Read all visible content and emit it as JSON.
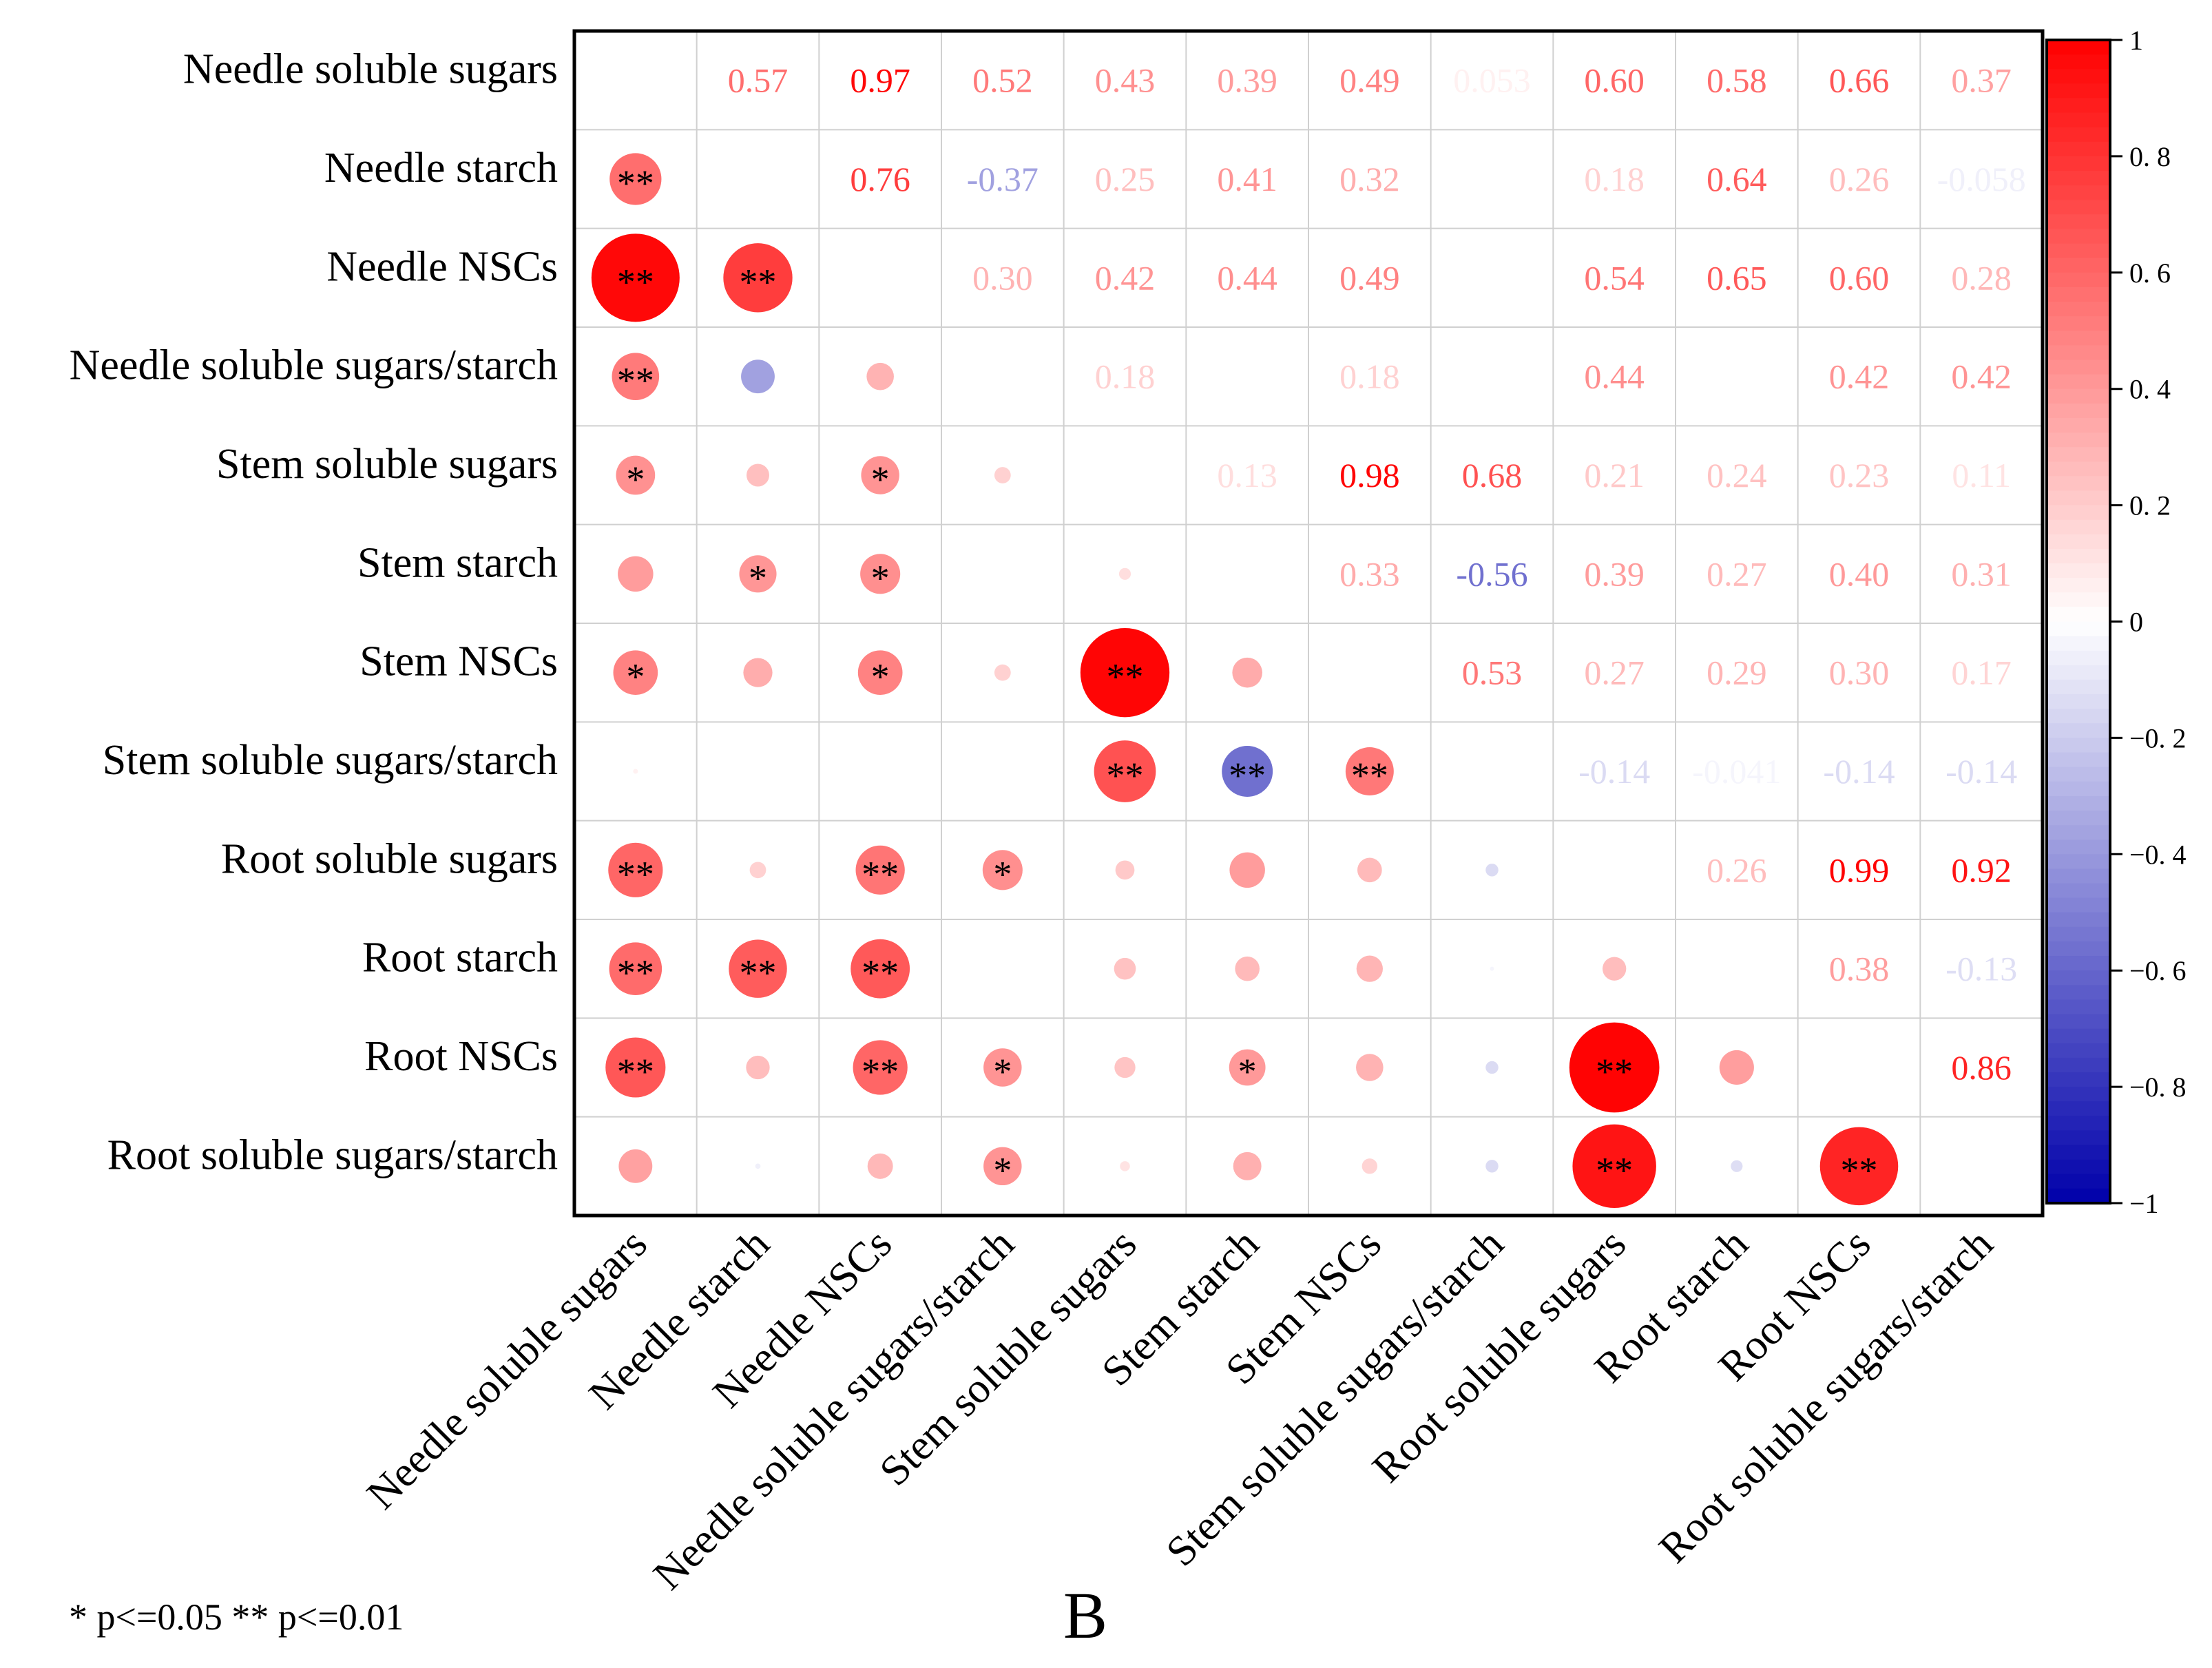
{
  "chart_data": {
    "type": "heatmap",
    "subtype": "correlation-matrix (lower: circles, upper: coefficients)",
    "variables": [
      "Needle soluble sugars",
      "Needle starch",
      "Needle NSCs",
      "Needle soluble sugars/starch",
      "Stem soluble sugars",
      "Stem starch",
      "Stem NSCs",
      "Stem soluble sugars/starch",
      "Root soluble sugars",
      "Root starch",
      "Root NSCs",
      "Root soluble sugars/starch"
    ],
    "upper": [
      [
        null,
        0.57,
        0.97,
        0.52,
        0.43,
        0.39,
        0.49,
        0.053,
        0.6,
        0.58,
        0.66,
        0.37
      ],
      [
        null,
        null,
        0.76,
        -0.37,
        0.25,
        0.41,
        0.32,
        null,
        0.18,
        0.64,
        0.26,
        -0.058
      ],
      [
        null,
        null,
        null,
        0.3,
        0.42,
        0.44,
        0.49,
        null,
        0.54,
        0.65,
        0.6,
        0.28
      ],
      [
        null,
        null,
        null,
        null,
        0.18,
        null,
        0.18,
        null,
        0.44,
        null,
        0.42,
        0.42
      ],
      [
        null,
        null,
        null,
        null,
        null,
        0.13,
        0.98,
        0.68,
        0.21,
        0.24,
        0.23,
        0.11
      ],
      [
        null,
        null,
        null,
        null,
        null,
        null,
        0.33,
        -0.56,
        0.39,
        0.27,
        0.4,
        0.31
      ],
      [
        null,
        null,
        null,
        null,
        null,
        null,
        null,
        0.53,
        0.27,
        0.29,
        0.3,
        0.17
      ],
      [
        null,
        null,
        null,
        null,
        null,
        null,
        null,
        null,
        -0.14,
        -0.041,
        -0.14,
        -0.14
      ],
      [
        null,
        null,
        null,
        null,
        null,
        null,
        null,
        null,
        null,
        0.26,
        0.99,
        0.92
      ],
      [
        null,
        null,
        null,
        null,
        null,
        null,
        null,
        null,
        null,
        null,
        0.38,
        -0.13
      ],
      [
        null,
        null,
        null,
        null,
        null,
        null,
        null,
        null,
        null,
        null,
        null,
        0.86
      ],
      [
        null,
        null,
        null,
        null,
        null,
        null,
        null,
        null,
        null,
        null,
        null,
        null
      ]
    ],
    "upper_labels": [
      [
        "",
        "0.57",
        "0.97",
        "0.52",
        "0.43",
        "0.39",
        "0.49",
        "0.053",
        "0.60",
        "0.58",
        "0.66",
        "0.37"
      ],
      [
        "",
        "",
        "0.76",
        "-0.37",
        "0.25",
        "0.41",
        "0.32",
        "",
        "0.18",
        "0.64",
        "0.26",
        "-0.058"
      ],
      [
        "",
        "",
        "",
        "0.30",
        "0.42",
        "0.44",
        "0.49",
        "",
        "0.54",
        "0.65",
        "0.60",
        "0.28"
      ],
      [
        "",
        "",
        "",
        "",
        "0.18",
        "",
        "0.18",
        "",
        "0.44",
        "",
        "0.42",
        "0.42"
      ],
      [
        "",
        "",
        "",
        "",
        "",
        "0.13",
        "0.98",
        "0.68",
        "0.21",
        "0.24",
        "0.23",
        "0.11"
      ],
      [
        "",
        "",
        "",
        "",
        "",
        "",
        "0.33",
        "-0.56",
        "0.39",
        "0.27",
        "0.40",
        "0.31"
      ],
      [
        "",
        "",
        "",
        "",
        "",
        "",
        "",
        "0.53",
        "0.27",
        "0.29",
        "0.30",
        "0.17"
      ],
      [
        "",
        "",
        "",
        "",
        "",
        "",
        "",
        "",
        "-0.14",
        "-0.041",
        "-0.14",
        "-0.14"
      ],
      [
        "",
        "",
        "",
        "",
        "",
        "",
        "",
        "",
        "",
        "0.26",
        "0.99",
        "0.92"
      ],
      [
        "",
        "",
        "",
        "",
        "",
        "",
        "",
        "",
        "",
        "",
        "0.38",
        "-0.13"
      ],
      [
        "",
        "",
        "",
        "",
        "",
        "",
        "",
        "",
        "",
        "",
        "",
        "0.86"
      ],
      [
        "",
        "",
        "",
        "",
        "",
        "",
        "",
        "",
        "",
        "",
        "",
        ""
      ]
    ],
    "significance_lower": [
      [
        "",
        "",
        "",
        "",
        "",
        "",
        "",
        "",
        "",
        "",
        "",
        ""
      ],
      [
        "**",
        "",
        "",
        "",
        "",
        "",
        "",
        "",
        "",
        "",
        "",
        ""
      ],
      [
        "**",
        "**",
        "",
        "",
        "",
        "",
        "",
        "",
        "",
        "",
        "",
        ""
      ],
      [
        "**",
        "",
        "",
        "",
        "",
        "",
        "",
        "",
        "",
        "",
        "",
        ""
      ],
      [
        "*",
        "",
        "*",
        "",
        "",
        "",
        "",
        "",
        "",
        "",
        "",
        ""
      ],
      [
        "",
        "*",
        "*",
        "",
        "",
        "",
        "",
        "",
        "",
        "",
        "",
        ""
      ],
      [
        "*",
        "",
        "*",
        "",
        "**",
        "",
        "",
        "",
        "",
        "",
        "",
        ""
      ],
      [
        "",
        "",
        "",
        "",
        "**",
        "**",
        "**",
        "",
        "",
        "",
        "",
        ""
      ],
      [
        "**",
        "",
        "**",
        "*",
        "",
        "",
        "",
        "",
        "",
        "",
        "",
        ""
      ],
      [
        "**",
        "**",
        "**",
        "",
        "",
        "",
        "",
        "",
        "",
        "",
        "",
        ""
      ],
      [
        "**",
        "",
        "**",
        "*",
        "",
        "*",
        "",
        "",
        "**",
        "",
        "",
        ""
      ],
      [
        "",
        "",
        "",
        "*",
        "",
        "",
        "",
        "",
        "**",
        "",
        "**",
        ""
      ]
    ],
    "colorbar": {
      "range": [
        -1,
        1
      ],
      "ticks": [
        "1",
        "0. 8",
        "0. 6",
        "0. 4",
        "0. 2",
        "0",
        "−0. 2",
        "−0. 4",
        "−0. 6",
        "−0. 8",
        "−1"
      ],
      "tick_values": [
        1,
        0.8,
        0.6,
        0.4,
        0.2,
        0,
        -0.2,
        -0.4,
        -0.6,
        -0.8,
        -1
      ],
      "colors": {
        "positive": "#ff0000",
        "zero": "#ffffff",
        "negative": "#0000aa"
      }
    },
    "footnote": "* p<=0.05  ** p<=0.01",
    "panel_label": "B",
    "grid": true
  }
}
